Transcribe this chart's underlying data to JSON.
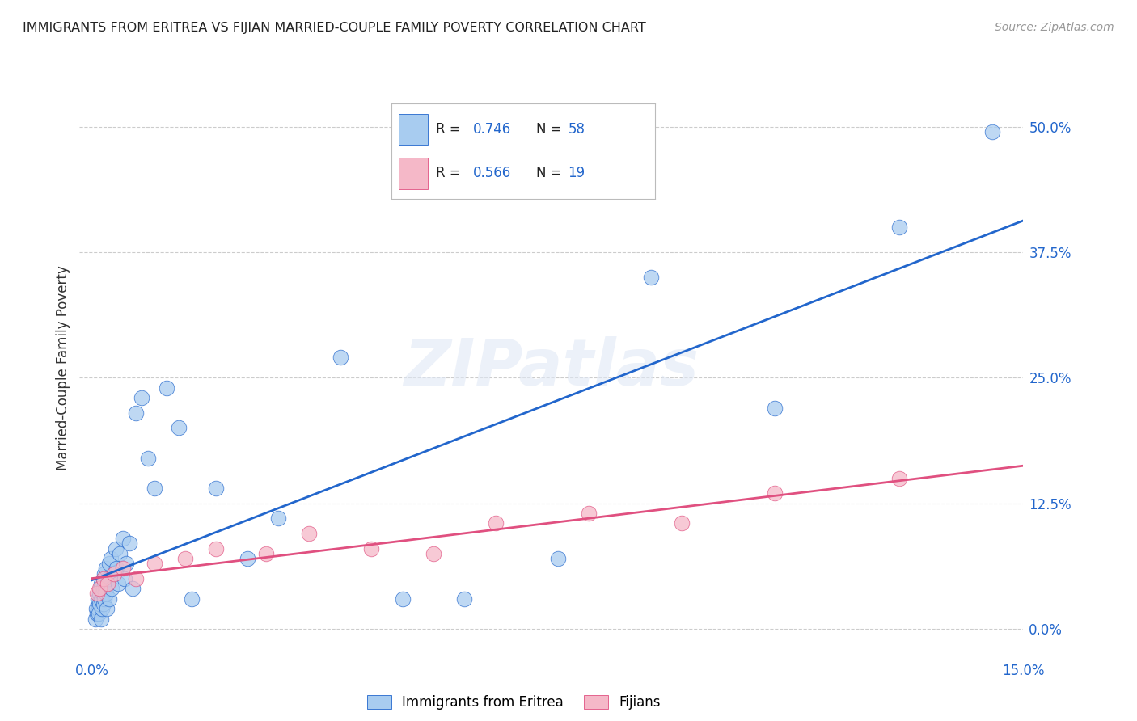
{
  "title": "IMMIGRANTS FROM ERITREA VS FIJIAN MARRIED-COUPLE FAMILY POVERTY CORRELATION CHART",
  "source": "Source: ZipAtlas.com",
  "ylabel": "Married-Couple Family Poverty",
  "blue_R": 0.746,
  "blue_N": 58,
  "pink_R": 0.566,
  "pink_N": 19,
  "blue_color": "#a8ccf0",
  "pink_color": "#f5b8c8",
  "blue_line_color": "#2266cc",
  "pink_line_color": "#e05080",
  "legend_label_blue": "Immigrants from Eritrea",
  "legend_label_pink": "Fijians",
  "blue_x": [
    0.05,
    0.07,
    0.08,
    0.09,
    0.1,
    0.1,
    0.11,
    0.12,
    0.12,
    0.13,
    0.14,
    0.15,
    0.15,
    0.16,
    0.17,
    0.18,
    0.18,
    0.19,
    0.2,
    0.2,
    0.21,
    0.22,
    0.23,
    0.24,
    0.25,
    0.26,
    0.27,
    0.28,
    0.3,
    0.32,
    0.35,
    0.38,
    0.4,
    0.42,
    0.45,
    0.5,
    0.52,
    0.55,
    0.6,
    0.65,
    0.7,
    0.8,
    0.9,
    1.0,
    1.2,
    1.4,
    1.6,
    2.0,
    2.5,
    3.0,
    4.0,
    5.0,
    6.0,
    7.5,
    9.0,
    11.0,
    13.0,
    14.5
  ],
  "blue_y": [
    1.0,
    2.0,
    1.5,
    2.5,
    3.0,
    2.0,
    1.5,
    3.5,
    2.5,
    4.0,
    3.0,
    1.0,
    4.5,
    2.0,
    3.5,
    5.0,
    2.5,
    4.0,
    3.0,
    5.5,
    4.0,
    6.0,
    3.5,
    2.0,
    4.5,
    5.0,
    3.0,
    6.5,
    7.0,
    4.0,
    5.5,
    8.0,
    6.0,
    4.5,
    7.5,
    9.0,
    5.0,
    6.5,
    8.5,
    4.0,
    21.5,
    23.0,
    17.0,
    14.0,
    24.0,
    20.0,
    3.0,
    14.0,
    7.0,
    11.0,
    27.0,
    3.0,
    3.0,
    7.0,
    35.0,
    22.0,
    40.0,
    49.5
  ],
  "pink_x": [
    0.08,
    0.12,
    0.18,
    0.25,
    0.35,
    0.5,
    0.7,
    1.0,
    1.5,
    2.0,
    2.8,
    3.5,
    4.5,
    5.5,
    6.5,
    8.0,
    9.5,
    11.0,
    13.0
  ],
  "pink_y": [
    3.5,
    4.0,
    5.0,
    4.5,
    5.5,
    6.0,
    5.0,
    6.5,
    7.0,
    8.0,
    7.5,
    9.5,
    8.0,
    7.5,
    10.5,
    11.5,
    10.5,
    13.5,
    15.0
  ],
  "xlim_min": -0.2,
  "xlim_max": 15.0,
  "ylim_min": -2.0,
  "ylim_max": 54.0,
  "ytick_vals": [
    0.0,
    12.5,
    25.0,
    37.5,
    50.0
  ],
  "ytick_labels": [
    "0.0%",
    "12.5%",
    "25.0%",
    "37.5%",
    "50.0%"
  ],
  "xtick_vals": [
    0.0,
    15.0
  ],
  "xtick_labels": [
    "0.0%",
    "15.0%"
  ],
  "grid_color": "#cccccc",
  "background_color": "#ffffff",
  "watermark": "ZIPatlas"
}
